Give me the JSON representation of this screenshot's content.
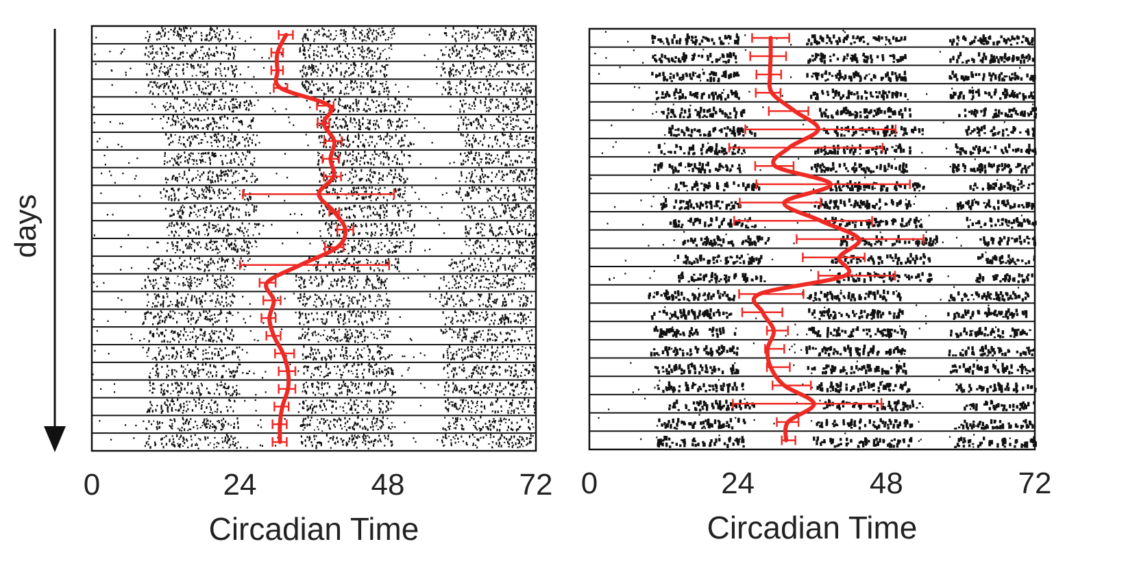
{
  "figure": {
    "y_axis_label": "days"
  },
  "colors": {
    "activity": "#111111",
    "phase_curve": "#ee2a24",
    "error_bar": "#ee2a24",
    "frame": "#111111"
  },
  "chart_data": [
    {
      "type": "scatter",
      "id": "left",
      "xlabel": "Circadian Time",
      "ylabel": "days",
      "xlim": [
        0,
        72
      ],
      "xticks": [
        0,
        24,
        48,
        72
      ],
      "rows": 24,
      "grid": false,
      "activity_density": "dense",
      "activity_bands": [
        [
          9,
          24
        ],
        [
          34,
          49
        ],
        [
          57,
          72
        ]
      ],
      "phase_curve": {
        "name": "",
        "values": [
          31.5,
          30.1,
          30.1,
          30.6,
          38.5,
          37.6,
          39.3,
          38.7,
          39.2,
          36.8,
          39.3,
          41.1,
          39.8,
          33.8,
          28.4,
          29.5,
          28.8,
          29.5,
          31.0,
          31.8,
          31.8,
          30.9,
          30.5,
          30.5
        ]
      },
      "error_bars": [
        [
          30.3,
          32.6
        ],
        [
          29.1,
          31.0
        ],
        [
          29.1,
          31.0
        ],
        [
          29.5,
          31.7
        ],
        [
          36.5,
          39.2
        ],
        [
          36.6,
          38.5
        ],
        [
          37.7,
          40.5
        ],
        [
          37.4,
          40.1
        ],
        [
          37.6,
          40.4
        ],
        [
          24.5,
          49.0
        ],
        [
          38.5,
          40.1
        ],
        [
          39.8,
          42.4
        ],
        [
          37.8,
          40.8
        ],
        [
          24.0,
          48.2
        ],
        [
          27.2,
          29.8
        ],
        [
          27.8,
          30.6
        ],
        [
          27.5,
          29.8
        ],
        [
          28.3,
          30.6
        ],
        [
          29.7,
          32.8
        ],
        [
          30.3,
          33.0
        ],
        [
          30.3,
          33.0
        ],
        [
          29.6,
          31.9
        ],
        [
          29.3,
          31.6
        ],
        [
          29.3,
          31.6
        ]
      ]
    },
    {
      "type": "scatter",
      "id": "right",
      "xlabel": "Circadian Time",
      "ylabel": "",
      "xlim": [
        0,
        72
      ],
      "xticks": [
        0,
        24,
        48,
        72
      ],
      "rows": 23,
      "grid": false,
      "activity_density": "clumped",
      "activity_bands": [
        [
          10,
          24
        ],
        [
          35,
          51
        ],
        [
          58,
          72
        ]
      ],
      "phase_curve": {
        "name": "",
        "values": [
          29.3,
          29.3,
          29.2,
          29.5,
          33.2,
          37.0,
          32.3,
          30.0,
          39.0,
          31.5,
          37.4,
          43.6,
          40.4,
          41.3,
          27.5,
          28.0,
          29.8,
          28.8,
          29.3,
          31.5,
          36.3,
          32.1,
          31.8
        ]
      },
      "error_bars": [
        [
          26.3,
          32.3
        ],
        [
          26.0,
          31.8
        ],
        [
          27.0,
          31.0
        ],
        [
          26.9,
          30.9
        ],
        [
          29.0,
          35.4
        ],
        [
          25.2,
          49.5
        ],
        [
          22.6,
          47.4
        ],
        [
          26.8,
          33.0
        ],
        [
          27.0,
          51.8
        ],
        [
          24.3,
          37.4
        ],
        [
          23.4,
          45.7
        ],
        [
          33.5,
          54.0
        ],
        [
          34.5,
          44.5
        ],
        [
          37.0,
          49.4
        ],
        [
          24.2,
          34.6
        ],
        [
          24.7,
          31.2
        ],
        [
          28.7,
          32.1
        ],
        [
          28.4,
          31.5
        ],
        [
          28.7,
          32.4
        ],
        [
          29.6,
          35.8
        ],
        [
          23.2,
          47.2
        ],
        [
          30.3,
          33.8
        ],
        [
          31.1,
          33.3
        ]
      ]
    }
  ]
}
